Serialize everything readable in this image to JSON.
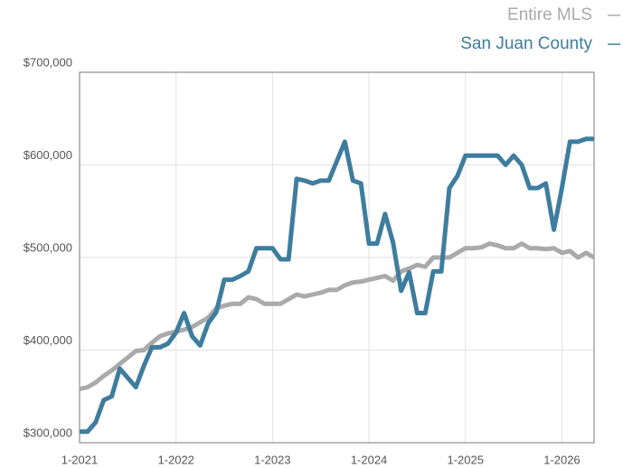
{
  "chart_data": {
    "type": "line",
    "x": [
      "2021-01",
      "2021-02",
      "2021-03",
      "2021-04",
      "2021-05",
      "2021-06",
      "2021-07",
      "2021-08",
      "2021-09",
      "2021-10",
      "2021-11",
      "2021-12",
      "2022-01",
      "2022-02",
      "2022-03",
      "2022-04",
      "2022-05",
      "2022-06",
      "2022-07",
      "2022-08",
      "2022-09",
      "2022-10",
      "2022-11",
      "2022-12",
      "2023-01",
      "2023-02",
      "2023-03",
      "2023-04",
      "2023-05",
      "2023-06",
      "2023-07",
      "2023-08",
      "2023-09",
      "2023-10",
      "2023-11",
      "2023-12",
      "2024-01",
      "2024-02",
      "2024-03",
      "2024-04",
      "2024-05",
      "2024-06",
      "2024-07",
      "2024-08",
      "2024-09",
      "2024-10",
      "2024-11",
      "2024-12",
      "2025-01",
      "2025-02",
      "2025-03",
      "2025-04",
      "2025-05",
      "2025-06",
      "2025-07",
      "2025-08",
      "2025-09",
      "2025-10",
      "2025-11",
      "2025-12",
      "2026-01",
      "2026-02",
      "2026-03",
      "2026-04",
      "2026-05"
    ],
    "series": [
      {
        "name": "Entire MLS",
        "color": "#aaaaaa",
        "values": [
          358000,
          360000,
          365000,
          372000,
          378000,
          385000,
          392000,
          399000,
          400000,
          408000,
          415000,
          418000,
          420000,
          422000,
          425000,
          430000,
          435000,
          445000,
          448000,
          450000,
          450000,
          457000,
          455000,
          450000,
          450000,
          450000,
          455000,
          460000,
          458000,
          460000,
          462000,
          465000,
          465000,
          470000,
          473000,
          474000,
          476000,
          478000,
          480000,
          475000,
          485000,
          488000,
          492000,
          490000,
          500000,
          500000,
          500000,
          505000,
          510000,
          510000,
          511000,
          515000,
          513000,
          510000,
          510000,
          515000,
          510000,
          510000,
          509000,
          510000,
          505000,
          507000,
          500000,
          505000,
          500000
        ]
      },
      {
        "name": "San Juan County",
        "color": "#3e7d9e",
        "values": [
          312000,
          312000,
          322000,
          346000,
          350000,
          380000,
          370000,
          360000,
          383000,
          403000,
          403000,
          407000,
          419000,
          440000,
          415000,
          405000,
          429000,
          441000,
          476000,
          476000,
          480000,
          485000,
          510000,
          510000,
          510000,
          498000,
          498000,
          585000,
          583000,
          580000,
          583000,
          583000,
          604000,
          625000,
          583000,
          580000,
          515000,
          515000,
          547000,
          516000,
          464000,
          484000,
          440000,
          440000,
          485000,
          485000,
          575000,
          588000,
          610000,
          610000,
          610000,
          610000,
          610000,
          600000,
          610000,
          600000,
          575000,
          575000,
          580000,
          530000,
          575000,
          625000,
          625000,
          628000,
          628000
        ]
      }
    ],
    "xlim": [
      "2021-01",
      "2026-05"
    ],
    "xticks": [
      {
        "value": "2021-01",
        "label": "1-2021"
      },
      {
        "value": "2022-01",
        "label": "1-2022"
      },
      {
        "value": "2023-01",
        "label": "1-2023"
      },
      {
        "value": "2024-01",
        "label": "1-2024"
      },
      {
        "value": "2025-01",
        "label": "1-2025"
      },
      {
        "value": "2026-01",
        "label": "1-2026"
      }
    ],
    "ylim": [
      300000,
      700000
    ],
    "yticks": [
      {
        "value": 300000,
        "label": "$300,000"
      },
      {
        "value": 400000,
        "label": "$400,000"
      },
      {
        "value": 500000,
        "label": "$500,000"
      },
      {
        "value": 600000,
        "label": "$600,000"
      },
      {
        "value": 700000,
        "label": "$700,000"
      }
    ],
    "grid": true,
    "legend": "top-right"
  }
}
